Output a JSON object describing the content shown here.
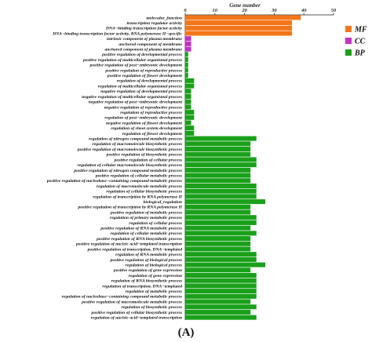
{
  "panel_label": "(A)",
  "chart_data": {
    "type": "bar",
    "orientation": "horizontal",
    "xlabel": "Gene number",
    "xlim": [
      0,
      50
    ],
    "xticks": [
      0,
      10,
      20,
      30,
      40,
      50
    ],
    "xaxis_position": "top",
    "grid": false,
    "legend_position": "right",
    "series": [
      {
        "name": "MF",
        "color": "#f5761a"
      },
      {
        "name": "CC",
        "color": "#c62fc6"
      },
      {
        "name": "BP",
        "color": "#1aa01a"
      }
    ],
    "categories": [
      "molecular_function",
      "transcription regulator activity",
      "DNA−binding transcription factor activity",
      "DNA−binding transcription factor activity, RNA polymerase II−specific",
      "intrinsic component of plasma membrane",
      "anchored component of membrane",
      "anchored component of plasma membrane",
      "positive regulation of developmental process",
      "positive regulation of multicellular organismal process",
      "positive regulation of post−embryonic development",
      "positive regulation of reproductive process",
      "positive regulation of flower development",
      "regulation of developmental process",
      "regulation of multicellular organismal process",
      "negative regulation of developmental process",
      "negative regulation of multicellular organismal process",
      "negative regulation of post−embryonic development",
      "negative regulation of reproductive process",
      "regulation of reproductive process",
      "regulation of post−embryonic development",
      "negative regulation of flower development",
      "regulation of shoot system development",
      "regulation of flower development",
      "regulation of nitrogen compound metabolic process",
      "regulation of macromolecule biosynthetic process",
      "positive regulation of macromolecule biosynthetic process",
      "positive regulation of biosynthetic process",
      "positive regulation of cellular process",
      "regulation of cellular macromolecule biosynthetic process",
      "positive regulation of nitrogen compound metabolic process",
      "positive regulation of cellular metabolic process",
      "positive regulation of nucleobase−containing compound metabolic process",
      "regulation of macromolecule metabolic process",
      "regulation of cellular biosynthetic process",
      "regulation of transcription by RNA polymerase II",
      "biological_regulation",
      "positive regulation of transcription by RNA polymerase II",
      "positive regulation of metabolic process",
      "regulation of primary metabolic process",
      "regulation of cellular process",
      "positive regulation of RNA metabolic process",
      "regulation of cellular metabolic process",
      "positive regulation of RNA biosynthetic process",
      "positive regulation of nucleic acid−templated transcription",
      "positive regulation of transcription, DNA−templated",
      "regulation of RNA metabolic process",
      "positive regulation of biological process",
      "regulation of biological process",
      "positive regulation of gene expression",
      "regulation of gene expression",
      "regulation of RNA biosynthetic process",
      "regulation of transcription, DNA−templated",
      "regulation of metabolic process",
      "regulation of nucleobase−containing compound metabolic process",
      "positive regulation of macromolecule metabolic process",
      "regulation of biosynthetic process",
      "positive regulation of cellular biosynthetic process",
      "regulation of nucleic acid−templated transcription"
    ],
    "values": [
      39,
      36,
      36,
      36,
      2,
      2,
      2,
      1,
      1,
      1,
      1,
      1,
      3,
      3,
      2,
      2,
      2,
      2,
      3,
      3,
      2,
      3,
      3,
      24,
      22,
      22,
      22,
      24,
      24,
      22,
      22,
      22,
      24,
      24,
      24,
      27,
      22,
      22,
      24,
      24,
      22,
      24,
      22,
      22,
      22,
      24,
      24,
      27,
      22,
      24,
      24,
      24,
      24,
      24,
      22,
      24,
      22,
      24
    ],
    "groups": [
      "MF",
      "MF",
      "MF",
      "MF",
      "CC",
      "CC",
      "CC",
      "BP",
      "BP",
      "BP",
      "BP",
      "BP",
      "BP",
      "BP",
      "BP",
      "BP",
      "BP",
      "BP",
      "BP",
      "BP",
      "BP",
      "BP",
      "BP",
      "BP",
      "BP",
      "BP",
      "BP",
      "BP",
      "BP",
      "BP",
      "BP",
      "BP",
      "BP",
      "BP",
      "BP",
      "BP",
      "BP",
      "BP",
      "BP",
      "BP",
      "BP",
      "BP",
      "BP",
      "BP",
      "BP",
      "BP",
      "BP",
      "BP",
      "BP",
      "BP",
      "BP",
      "BP",
      "BP",
      "BP",
      "BP",
      "BP",
      "BP",
      "BP"
    ]
  }
}
